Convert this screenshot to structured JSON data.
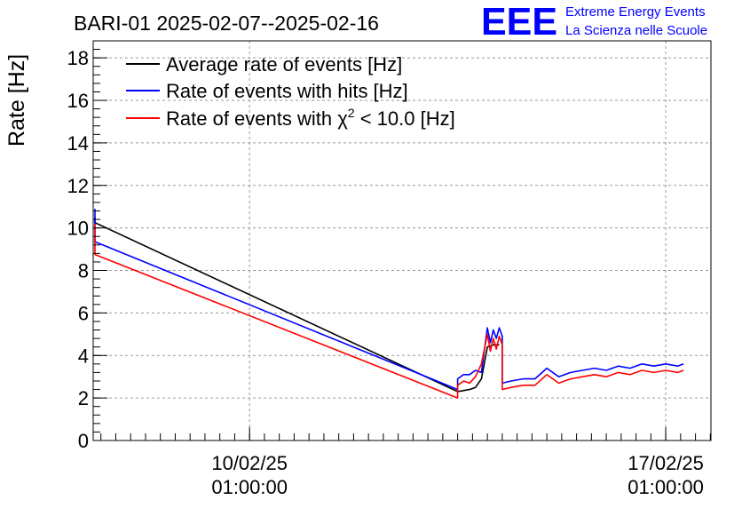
{
  "header": {
    "logo_text": "EEE",
    "logo_line1": "Extreme Energy Events",
    "logo_line2": "La Scienza nelle Scuole",
    "accent_color": "#0000ff"
  },
  "chart_data": {
    "type": "line",
    "title": "BARI-01 2025-02-07--2025-02-16",
    "xlabel": "",
    "ylabel": "Rate [Hz]",
    "ylim": [
      0,
      18.8
    ],
    "yticks": [
      0,
      2,
      4,
      6,
      8,
      10,
      12,
      14,
      16,
      18
    ],
    "xlim": [
      -2.63,
      7.76
    ],
    "x_unit": "days since 10/02/25 01:00:00",
    "xticks": [
      {
        "x": 0,
        "label_date": "10/02/25",
        "label_time": "01:00:00"
      },
      {
        "x": 7,
        "label_date": "17/02/25",
        "label_time": "01:00:00"
      }
    ],
    "grid": true,
    "legend_position": "top-left",
    "legend": [
      {
        "name": "Average rate of events [Hz]",
        "color": "#000000"
      },
      {
        "name": "Rate of events with hits [Hz]",
        "color": "#0000ff"
      },
      {
        "name_prefix": "Rate of events with ",
        "name_symbol": "χ",
        "name_sup": "2",
        "name_suffix": " < 10.0 [Hz]",
        "color": "#ff0000"
      }
    ],
    "series": [
      {
        "name": "Average rate of events [Hz]",
        "color": "#000000",
        "x": [
          -2.6,
          -2.6,
          3.5,
          3.7,
          3.8,
          3.9,
          4.0,
          4.1,
          4.2
        ],
        "y": [
          10.5,
          10.25,
          2.3,
          2.4,
          2.5,
          2.9,
          4.4,
          4.5,
          4.5
        ]
      },
      {
        "name": "Rate of events with hits [Hz]",
        "color": "#0000ff",
        "x": [
          -2.6,
          -2.6,
          -2.6,
          3.5,
          3.5,
          3.6,
          3.7,
          3.8,
          3.9,
          4.0,
          4.05,
          4.1,
          4.15,
          4.2,
          4.25,
          4.25,
          4.4,
          4.6,
          4.8,
          5.0,
          5.2,
          5.4,
          5.6,
          5.8,
          6.0,
          6.2,
          6.4,
          6.6,
          6.8,
          7.0,
          7.2,
          7.3
        ],
        "y": [
          10.9,
          9.8,
          9.35,
          2.4,
          2.9,
          3.1,
          3.1,
          3.3,
          3.2,
          5.3,
          4.6,
          5.2,
          4.8,
          5.3,
          4.9,
          2.7,
          2.8,
          2.9,
          2.9,
          3.4,
          3.0,
          3.2,
          3.3,
          3.4,
          3.3,
          3.5,
          3.4,
          3.6,
          3.5,
          3.6,
          3.5,
          3.6
        ]
      },
      {
        "name": "Rate of events with χ² < 10.0 [Hz]",
        "color": "#ff0000",
        "x": [
          -2.6,
          -2.6,
          3.5,
          3.5,
          3.6,
          3.7,
          3.8,
          3.9,
          4.0,
          4.05,
          4.1,
          4.15,
          4.2,
          4.25,
          4.25,
          4.4,
          4.6,
          4.8,
          5.0,
          5.2,
          5.4,
          5.6,
          5.8,
          6.0,
          6.2,
          6.4,
          6.6,
          6.8,
          7.0,
          7.2,
          7.3
        ],
        "y": [
          10.2,
          8.75,
          2.0,
          2.6,
          2.8,
          2.7,
          3.0,
          3.6,
          5.0,
          4.2,
          4.8,
          4.3,
          4.9,
          4.5,
          2.4,
          2.5,
          2.6,
          2.6,
          3.1,
          2.7,
          2.9,
          3.0,
          3.1,
          3.0,
          3.2,
          3.1,
          3.3,
          3.2,
          3.3,
          3.2,
          3.3
        ]
      }
    ]
  }
}
